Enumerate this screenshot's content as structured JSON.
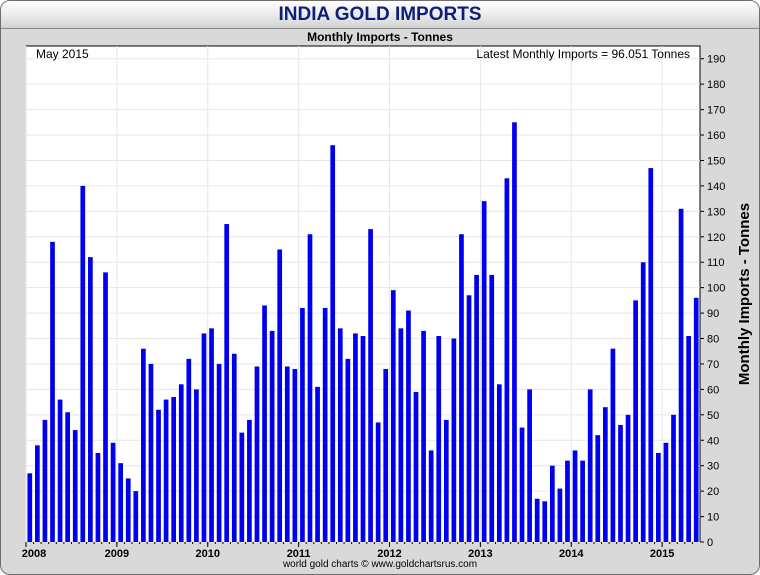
{
  "header": {
    "title": "INDIA GOLD IMPORTS",
    "subtitle": "Monthly Imports - Tonnes"
  },
  "footer": {
    "credit": "world gold charts © www.goldchartsrus.com"
  },
  "colors": {
    "bar": "#0000ee",
    "plot_bg": "#ffffff",
    "frame_bg": "#d9d9d9",
    "title": "#0d1f7a"
  },
  "chart_data": {
    "type": "bar",
    "title": "INDIA GOLD IMPORTS",
    "subtitle": "Monthly Imports - Tonnes",
    "ylabel": "Monthly Imports - Tonnes",
    "xlabel": "",
    "annotation_left": "May 2015",
    "annotation_right": "Latest Monthly Imports = 96.051 Tonnes",
    "ylim": [
      0,
      195
    ],
    "y_ticks": [
      0,
      10,
      20,
      30,
      40,
      50,
      60,
      70,
      80,
      90,
      100,
      110,
      120,
      130,
      140,
      150,
      160,
      170,
      180,
      190
    ],
    "y_axis_side": "right",
    "grid": true,
    "x_ticks": [
      "2008",
      "2009",
      "2010",
      "2011",
      "2012",
      "2013",
      "2014",
      "2015"
    ],
    "start_month": "2008-01",
    "values": [
      27,
      38,
      48,
      118,
      56,
      51,
      44,
      140,
      112,
      35,
      106,
      39,
      31,
      25,
      20,
      76,
      70,
      52,
      56,
      57,
      62,
      72,
      60,
      82,
      84,
      70,
      125,
      74,
      43,
      48,
      69,
      93,
      83,
      115,
      69,
      68,
      92,
      121,
      61,
      92,
      156,
      84,
      72,
      82,
      81,
      123,
      47,
      68,
      99,
      84,
      91,
      59,
      83,
      36,
      81,
      48,
      80,
      121,
      97,
      105,
      134,
      105,
      62,
      143,
      165,
      45,
      60,
      17,
      16,
      30,
      21,
      32,
      36,
      32,
      60,
      42,
      53,
      76,
      46,
      50,
      95,
      110,
      147,
      35,
      39,
      50,
      131,
      81,
      96
    ]
  }
}
